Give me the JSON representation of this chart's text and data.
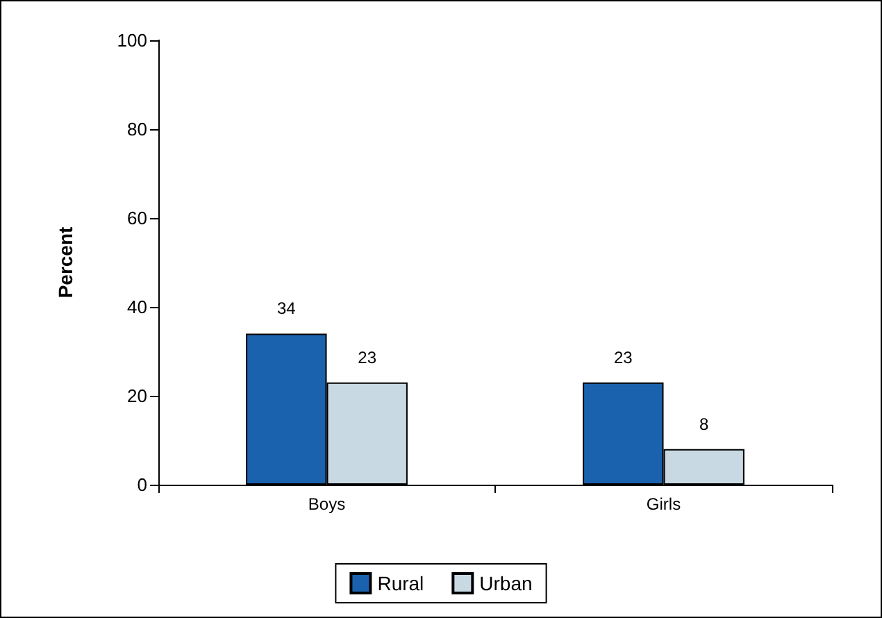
{
  "chart_data": {
    "type": "bar",
    "ylabel": "Percent",
    "categories": [
      "Boys",
      "Girls"
    ],
    "series": [
      {
        "name": "Rural",
        "color": "#1a62ad",
        "values": [
          34,
          23
        ]
      },
      {
        "name": "Urban",
        "color": "#c9d9e3",
        "values": [
          23,
          8
        ]
      }
    ],
    "ylim": [
      0,
      100
    ],
    "yticks": [
      0,
      20,
      40,
      60,
      80,
      100
    ],
    "grid": false,
    "legend": "bottom",
    "data_labels": true
  }
}
